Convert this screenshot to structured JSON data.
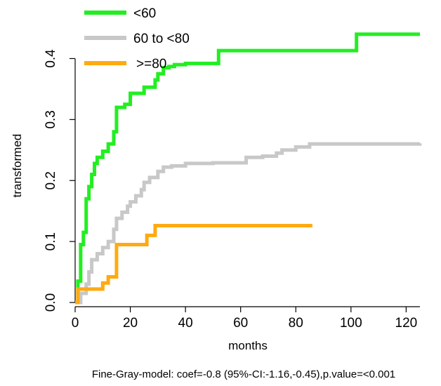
{
  "chart_data": {
    "type": "line",
    "step": true,
    "xlabel": "months",
    "ylabel": "transformed",
    "xlim": [
      0,
      125
    ],
    "ylim": [
      0,
      0.45
    ],
    "xticks": [
      0,
      20,
      40,
      60,
      80,
      100,
      120
    ],
    "yticks": [
      0.0,
      0.1,
      0.2,
      0.3,
      0.4
    ],
    "ytick_labels": [
      "0.0",
      "0.1",
      "0.2",
      "0.3",
      "0.4"
    ],
    "grid": false,
    "legend_position": "top-left",
    "caption": "Fine-Gray-model: coef=-0.8 (95%-CI:-1.16,-0.45),p.value=<0.001",
    "series": [
      {
        "name": "<60",
        "color": "#22ee22",
        "x": [
          0,
          1,
          2,
          3,
          4,
          5,
          6,
          7,
          8,
          10,
          12,
          14,
          15,
          18,
          20,
          25,
          29,
          30,
          32,
          34,
          36,
          40,
          52,
          56,
          60,
          80,
          102,
          125
        ],
        "y": [
          0,
          0.035,
          0.095,
          0.115,
          0.17,
          0.19,
          0.21,
          0.228,
          0.238,
          0.248,
          0.26,
          0.28,
          0.32,
          0.325,
          0.343,
          0.353,
          0.365,
          0.375,
          0.385,
          0.387,
          0.39,
          0.392,
          0.413,
          0.413,
          0.413,
          0.413,
          0.44,
          0.44
        ]
      },
      {
        "name": "60 to <80",
        "color": "#c8c8c8",
        "x": [
          0,
          2,
          4,
          5,
          6,
          8,
          10,
          12,
          14,
          15,
          17,
          19,
          20,
          22,
          24,
          25,
          27,
          30,
          32,
          35,
          40,
          50,
          60,
          62,
          68,
          73,
          75,
          80,
          85,
          90,
          100,
          125
        ],
        "y": [
          0,
          0.015,
          0.03,
          0.05,
          0.07,
          0.08,
          0.09,
          0.1,
          0.12,
          0.138,
          0.148,
          0.158,
          0.165,
          0.175,
          0.185,
          0.197,
          0.205,
          0.215,
          0.222,
          0.224,
          0.228,
          0.229,
          0.229,
          0.238,
          0.24,
          0.245,
          0.25,
          0.255,
          0.26,
          0.26,
          0.26,
          0.261
        ]
      },
      {
        "name": ">=80",
        "color": "#ffaa11",
        "x": [
          0,
          1,
          2,
          10,
          12,
          15,
          26,
          29,
          40,
          60,
          80,
          86
        ],
        "y": [
          0,
          0.022,
          0.022,
          0.032,
          0.042,
          0.095,
          0.11,
          0.126,
          0.126,
          0.126,
          0.126,
          0.126
        ]
      }
    ]
  }
}
